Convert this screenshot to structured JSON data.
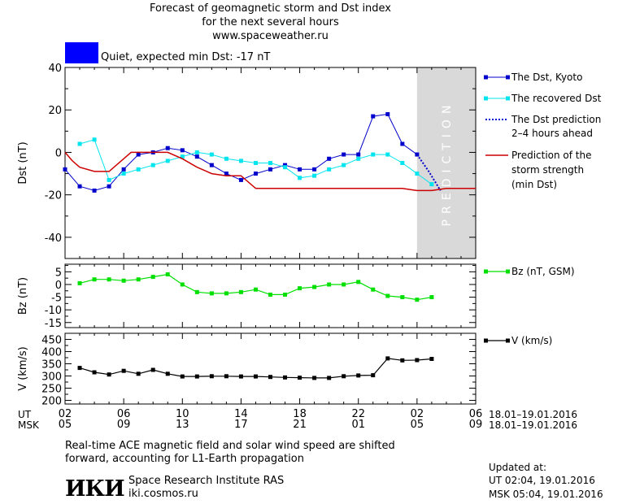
{
  "header": {
    "line1": "Forecast of geomagnetic storm and Dst index",
    "line2": "for the next several hours",
    "line3": "www.spaceweather.ru"
  },
  "status": {
    "text": "Quiet, expected min Dst: -17 nT",
    "color": "#0000ff"
  },
  "colors": {
    "dst_kyoto": "#0000cc",
    "dst_recovered": "#00e5ee",
    "prediction": "#0000cc",
    "storm": "#cc0000",
    "bz": "#00e000",
    "v": "#000000",
    "band": "#d9d9d9"
  },
  "band_label": "PREDICTION",
  "legend": {
    "dst_kyoto": "The Dst, Kyoto",
    "dst_recovered": "The recovered Dst",
    "prediction_1": "The Dst prediction",
    "prediction_2": "2–4 hours ahead",
    "storm_1": "Prediction of the",
    "storm_2": "storm strength",
    "storm_3": "(min Dst)",
    "bz": "Bz (nT, GSM)",
    "v": "V (km/s)"
  },
  "x_axis": {
    "ut_label": "UT",
    "msk_label": "MSK",
    "ut_ticks": [
      "02",
      "06",
      "10",
      "14",
      "18",
      "22",
      "02",
      "06"
    ],
    "msk_ticks": [
      "05",
      "09",
      "13",
      "17",
      "21",
      "01",
      "05",
      "09"
    ],
    "date_range": "18.01–19.01.2016"
  },
  "footer": {
    "note_1": "Real-time ACE magnetic field and solar wind speed are shifted",
    "note_2": "forward, accounting for L1-Earth propagation",
    "logo": "ИКИ",
    "institute": "Space Research Institute RAS",
    "site": "iki.cosmos.ru",
    "updated_label": "Updated at:",
    "updated_ut": "UT   02:04, 19.01.2016",
    "updated_msk": "MSK 05:04, 19.01.2016"
  },
  "chart_data": [
    {
      "type": "line",
      "ylabel": "Dst (nT)",
      "xlim": [
        0,
        28
      ],
      "ylim": [
        -50,
        40
      ],
      "yticks": [
        40,
        20,
        0,
        -20,
        -40
      ],
      "prediction_band": [
        24,
        28
      ],
      "series": [
        {
          "name": "The Dst, Kyoto",
          "x": [
            0,
            1,
            2,
            3,
            4,
            5,
            6,
            7,
            8,
            9,
            10,
            11,
            12,
            13,
            14,
            15,
            16,
            17,
            18,
            19,
            20,
            21,
            22,
            23,
            24
          ],
          "y": [
            -8,
            -16,
            -18,
            -16,
            -8,
            -1,
            0,
            2,
            1,
            -2,
            -6,
            -10,
            -13,
            -10,
            -8,
            -6,
            -8,
            -8,
            -3,
            -1,
            -1,
            17,
            18,
            4,
            -1
          ]
        },
        {
          "name": "The recovered Dst",
          "x": [
            1,
            2,
            3,
            4,
            5,
            6,
            7,
            8,
            9,
            10,
            11,
            12,
            13,
            14,
            15,
            16,
            17,
            18,
            19,
            20,
            21,
            22,
            23,
            24,
            25
          ],
          "y": [
            4,
            6,
            -13,
            -10,
            -8,
            -6,
            -4,
            -2,
            0,
            -1,
            -3,
            -4,
            -5,
            -5,
            -7,
            -12,
            -11,
            -8,
            -6,
            -3,
            -1,
            -1,
            -5,
            -10,
            -15
          ]
        },
        {
          "name": "The Dst prediction 2–4 hours ahead",
          "x": [
            24,
            24.8,
            25.6
          ],
          "y": [
            -1,
            -9,
            -18
          ]
        },
        {
          "name": "Prediction of the storm strength (min Dst)",
          "x": [
            0,
            0.5,
            1,
            2,
            2.5,
            3,
            4,
            4.5,
            5,
            6,
            7,
            8,
            9,
            10,
            11,
            12,
            13,
            14,
            15,
            16,
            17,
            18,
            19,
            20,
            21,
            22,
            23,
            24,
            25,
            26,
            27,
            28
          ],
          "y": [
            0,
            -4,
            -7,
            -9,
            -9,
            -9,
            -3,
            0,
            0,
            0,
            0,
            -3,
            -7,
            -10,
            -11,
            -11,
            -17,
            -17,
            -17,
            -17,
            -17,
            -17,
            -17,
            -17,
            -17,
            -17,
            -17,
            -18,
            -18,
            -17,
            -17,
            -17
          ]
        }
      ]
    },
    {
      "type": "line",
      "ylabel": "Bz (nT)",
      "xlim": [
        0,
        28
      ],
      "ylim": [
        -17,
        8
      ],
      "yticks": [
        5,
        0,
        -5,
        -10,
        -15
      ],
      "series": [
        {
          "name": "Bz (nT, GSM)",
          "x": [
            1,
            2,
            3,
            4,
            5,
            6,
            7,
            8,
            9,
            10,
            11,
            12,
            13,
            14,
            15,
            16,
            17,
            18,
            19,
            20,
            21,
            22,
            23,
            24,
            25
          ],
          "y": [
            0.5,
            2,
            2,
            1.5,
            2,
            3,
            4,
            0,
            -3,
            -3.5,
            -3.5,
            -3,
            -2,
            -4,
            -4,
            -1.5,
            -1,
            0,
            0,
            1,
            -2,
            -4.5,
            -5,
            -6,
            -5
          ]
        }
      ]
    },
    {
      "type": "line",
      "ylabel": "V (km/s)",
      "xlim": [
        0,
        28
      ],
      "ylim": [
        185,
        475
      ],
      "yticks": [
        450,
        400,
        350,
        300,
        250,
        200
      ],
      "series": [
        {
          "name": "V (km/s)",
          "x": [
            1,
            2,
            3,
            4,
            5,
            6,
            7,
            8,
            9,
            10,
            11,
            12,
            13,
            14,
            15,
            16,
            17,
            18,
            19,
            20,
            21,
            22,
            23,
            24,
            25
          ],
          "y": [
            333,
            315,
            306,
            321,
            309,
            325,
            309,
            298,
            298,
            299,
            299,
            298,
            298,
            296,
            294,
            293,
            292,
            292,
            299,
            302,
            303,
            372,
            364,
            365,
            370
          ]
        }
      ]
    }
  ]
}
